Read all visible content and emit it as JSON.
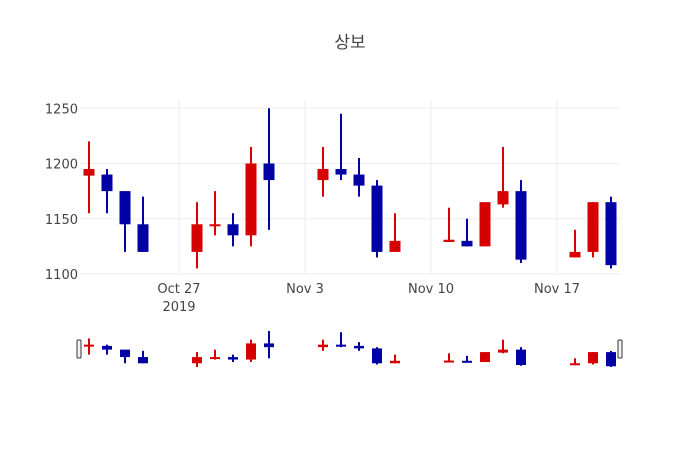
{
  "chart_data": {
    "type": "candlestick",
    "title": "상보",
    "xlabel": "",
    "ylabel": "",
    "ylim": [
      1100,
      1255
    ],
    "yticks": [
      1100,
      1150,
      1200,
      1250
    ],
    "xticks": [
      {
        "date": "2019-10-27",
        "label": "Oct 27",
        "sublabel": "2019"
      },
      {
        "date": "2019-11-03",
        "label": "Nov 3",
        "sublabel": ""
      },
      {
        "date": "2019-11-10",
        "label": "Nov 10",
        "sublabel": ""
      },
      {
        "date": "2019-11-17",
        "label": "Nov 17",
        "sublabel": ""
      }
    ],
    "increasing_color": "#d60000",
    "decreasing_color": "#0000a4",
    "grid": true,
    "rangeslider": true,
    "candles": [
      {
        "date": "2019-10-22",
        "open": 1189,
        "high": 1220,
        "low": 1155,
        "close": 1195
      },
      {
        "date": "2019-10-23",
        "open": 1190,
        "high": 1195,
        "low": 1155,
        "close": 1175
      },
      {
        "date": "2019-10-24",
        "open": 1175,
        "high": 1175,
        "low": 1120,
        "close": 1145
      },
      {
        "date": "2019-10-25",
        "open": 1145,
        "high": 1170,
        "low": 1120,
        "close": 1120
      },
      {
        "date": "2019-10-28",
        "open": 1120,
        "high": 1165,
        "low": 1105,
        "close": 1145
      },
      {
        "date": "2019-10-29",
        "open": 1144,
        "high": 1175,
        "low": 1135,
        "close": 1145
      },
      {
        "date": "2019-10-30",
        "open": 1145,
        "high": 1155,
        "low": 1125,
        "close": 1135
      },
      {
        "date": "2019-10-31",
        "open": 1135,
        "high": 1215,
        "low": 1125,
        "close": 1200
      },
      {
        "date": "2019-11-01",
        "open": 1200,
        "high": 1250,
        "low": 1140,
        "close": 1185
      },
      {
        "date": "2019-11-04",
        "open": 1185,
        "high": 1215,
        "low": 1170,
        "close": 1195
      },
      {
        "date": "2019-11-05",
        "open": 1195,
        "high": 1245,
        "low": 1185,
        "close": 1190
      },
      {
        "date": "2019-11-06",
        "open": 1190,
        "high": 1205,
        "low": 1170,
        "close": 1180
      },
      {
        "date": "2019-11-07",
        "open": 1180,
        "high": 1185,
        "low": 1115,
        "close": 1120
      },
      {
        "date": "2019-11-08",
        "open": 1120,
        "high": 1155,
        "low": 1120,
        "close": 1130
      },
      {
        "date": "2019-11-11",
        "open": 1129,
        "high": 1160,
        "low": 1129,
        "close": 1131
      },
      {
        "date": "2019-11-12",
        "open": 1130,
        "high": 1150,
        "low": 1125,
        "close": 1125
      },
      {
        "date": "2019-11-13",
        "open": 1125,
        "high": 1165,
        "low": 1125,
        "close": 1165
      },
      {
        "date": "2019-11-14",
        "open": 1163,
        "high": 1215,
        "low": 1160,
        "close": 1175
      },
      {
        "date": "2019-11-15",
        "open": 1175,
        "high": 1185,
        "low": 1110,
        "close": 1113
      },
      {
        "date": "2019-11-18",
        "open": 1115,
        "high": 1140,
        "low": 1115,
        "close": 1120
      },
      {
        "date": "2019-11-19",
        "open": 1120,
        "high": 1165,
        "low": 1115,
        "close": 1165
      },
      {
        "date": "2019-11-20",
        "open": 1165,
        "high": 1170,
        "low": 1105,
        "close": 1108
      }
    ]
  }
}
